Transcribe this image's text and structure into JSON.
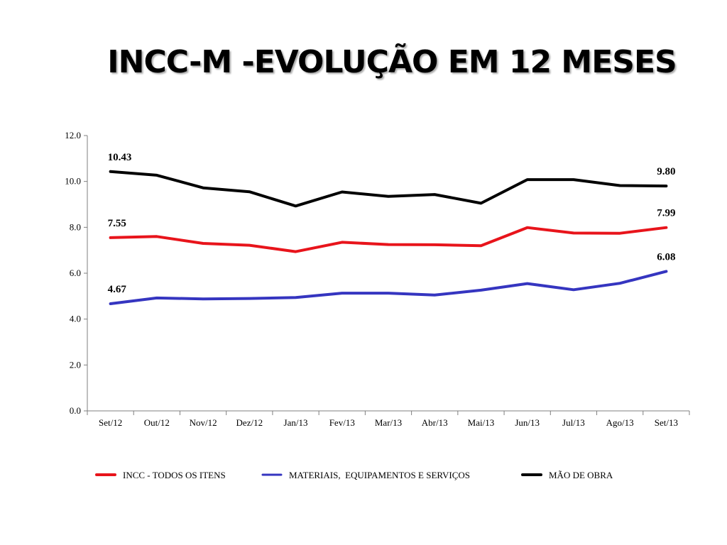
{
  "slide": {
    "title": "INCC-M -EVOLUÇÃO EM 12 MESES"
  },
  "chart_data": {
    "type": "line",
    "title": "",
    "xlabel": "",
    "ylabel": "",
    "categories": [
      "Set/12",
      "Out/12",
      "Nov/12",
      "Dez/12",
      "Jan/13",
      "Fev/13",
      "Mar/13",
      "Abr/13",
      "Mai/13",
      "Jun/13",
      "Jul/13",
      "Ago/13",
      "Set/13"
    ],
    "ylim": [
      0,
      12
    ],
    "yticks": [
      "0.0",
      "2.0",
      "4.0",
      "6.0",
      "8.0",
      "10.0",
      "12.0"
    ],
    "grid": false,
    "legend_position": "bottom",
    "series": [
      {
        "name": "INCC - TODOS OS ITENS",
        "color": "#e8141b",
        "values": [
          7.55,
          7.6,
          7.3,
          7.22,
          6.94,
          7.35,
          7.25,
          7.24,
          7.2,
          7.99,
          7.75,
          7.74,
          7.99
        ],
        "labels": [
          {
            "index": 0,
            "text": "7.55"
          },
          {
            "index": 12,
            "text": "7.99"
          }
        ]
      },
      {
        "name": "MATERIAIS,  EQUIPAMENTOS E SERVIÇOS",
        "color": "#3535c0",
        "values": [
          4.67,
          4.92,
          4.88,
          4.9,
          4.94,
          5.13,
          5.13,
          5.05,
          5.26,
          5.55,
          5.28,
          5.56,
          6.08
        ],
        "labels": [
          {
            "index": 0,
            "text": "4.67"
          },
          {
            "index": 12,
            "text": "6.08"
          }
        ]
      },
      {
        "name": "MÃO DE OBRA",
        "color": "#000000",
        "values": [
          10.43,
          10.27,
          9.72,
          9.55,
          8.93,
          9.54,
          9.35,
          9.43,
          9.05,
          10.08,
          10.08,
          9.82,
          9.8
        ],
        "labels": [
          {
            "index": 0,
            "text": "10.43"
          },
          {
            "index": 12,
            "text": "9.80"
          }
        ]
      }
    ]
  }
}
